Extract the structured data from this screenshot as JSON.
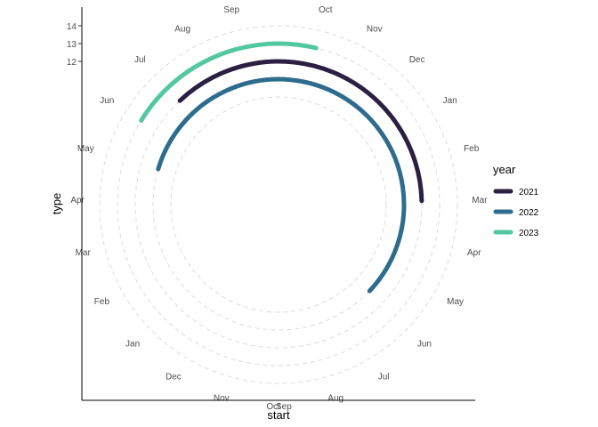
{
  "chart_data": {
    "type": "line",
    "title": "",
    "xlabel": "start",
    "ylabel": "type",
    "yticks": [
      "12",
      "13",
      "14"
    ],
    "month_labels_right": [
      "Oct",
      "Nov",
      "Dec",
      "Jan",
      "Feb",
      "Mar",
      "Apr",
      "May",
      "Jun",
      "Jul",
      "Aug",
      "Sep"
    ],
    "month_labels_left": [
      "Sep",
      "Aug",
      "Jul",
      "Jun",
      "May",
      "Apr",
      "Mar",
      "Feb",
      "Jan",
      "Dec",
      "Nov",
      "Oct"
    ],
    "grid": "dashed concentric circles",
    "legend": {
      "title": "year",
      "position": "right"
    },
    "series": [
      {
        "name": "2021",
        "type": 12,
        "start": "Jul",
        "end": "Mar",
        "color": "#2b1f42"
      },
      {
        "name": "2022",
        "type": 11,
        "start": "May",
        "end": "Jun",
        "color": "#2e6c8e"
      },
      {
        "name": "2023",
        "type": 13,
        "start": "Jun",
        "end": "Oct",
        "color": "#52c8a0"
      }
    ]
  }
}
